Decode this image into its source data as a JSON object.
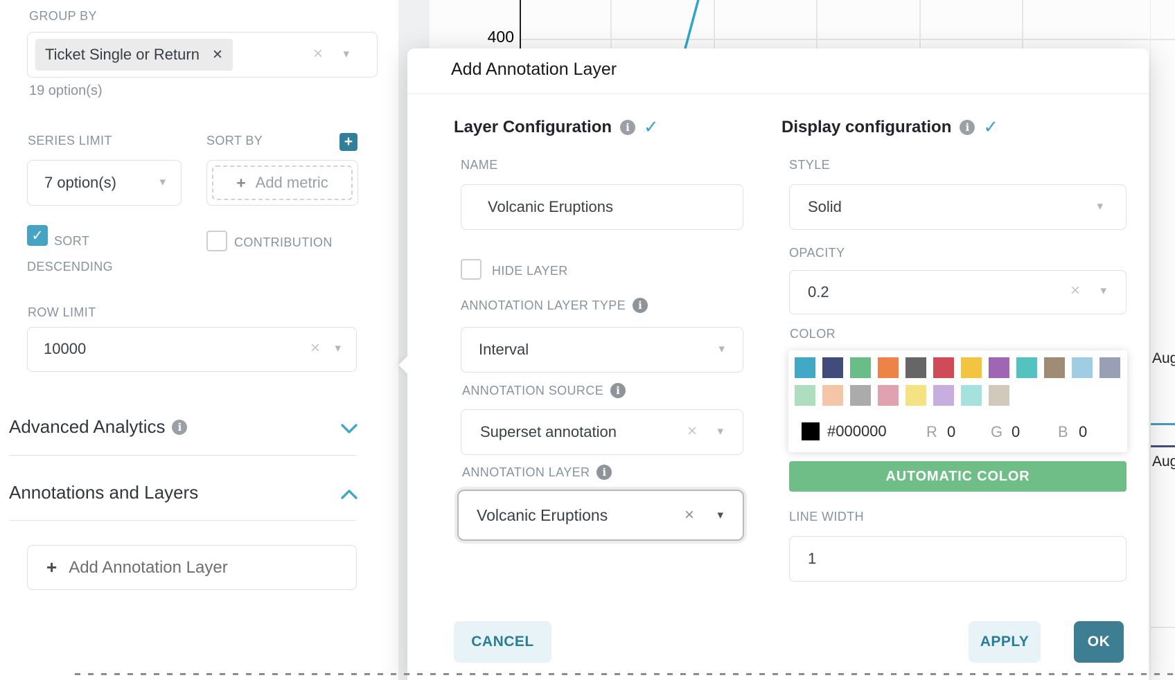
{
  "icons": {
    "caret_down": "▾",
    "clear": "×",
    "tag_remove": "✕",
    "check": "✓",
    "plus": "+",
    "info": "i"
  },
  "colors": {
    "accent_teal": "#41a7c5",
    "primary_button": "#3d7e92",
    "success_green": "#6fbe87",
    "chart_line_blue": "#2ea6c9",
    "chart_line_navy": "#454e7c",
    "chart_line_teal": "#3f9cbf",
    "selected_hex": "#000000"
  },
  "left_panel": {
    "group_by_label": "GROUP BY",
    "group_by_tag": "Ticket Single or Return",
    "group_by_hint": "19 option(s)",
    "series_limit_label": "SERIES LIMIT",
    "series_limit_value": "7 option(s)",
    "sort_by_label": "SORT BY",
    "sort_by_placeholder": "Add metric",
    "sort_descending_label": "SORT DESCENDING",
    "sort_descending_checked": true,
    "contribution_label": "CONTRIBUTION",
    "contribution_checked": false,
    "row_limit_label": "ROW LIMIT",
    "row_limit_value": "10000",
    "advanced_analytics_label": "Advanced Analytics",
    "annotations_layers_label": "Annotations and Layers",
    "add_annotation_layer_button": "Add Annotation Layer"
  },
  "chart": {
    "y_tick": "400",
    "x_label_1": "Aug",
    "x_label_2": "Aug"
  },
  "modal": {
    "title": "Add Annotation Layer",
    "layer_configuration": {
      "section_title": "Layer Configuration",
      "name_label": "NAME",
      "name_value": "Volcanic Eruptions",
      "hide_layer_label": "HIDE LAYER",
      "hide_layer_checked": false,
      "annotation_layer_type_label": "ANNOTATION LAYER TYPE",
      "annotation_layer_type_value": "Interval",
      "annotation_source_label": "ANNOTATION SOURCE",
      "annotation_source_value": "Superset annotation",
      "annotation_layer_label": "ANNOTATION LAYER",
      "annotation_layer_value": "Volcanic Eruptions"
    },
    "display_configuration": {
      "section_title": "Display configuration",
      "style_label": "STYLE",
      "style_value": "Solid",
      "opacity_label": "OPACITY",
      "opacity_value": "0.2",
      "color_label": "COLOR",
      "color_hex": "#000000",
      "r_label": "R",
      "r_value": "0",
      "g_label": "G",
      "g_value": "0",
      "b_label": "B",
      "b_value": "0",
      "swatches_row1": [
        "#41a8c5",
        "#414c7d",
        "#6abd87",
        "#ee8348",
        "#666666",
        "#cf4b58",
        "#f2c43f",
        "#a066b3",
        "#55c2c2",
        "#a08b75",
        "#9fcee4",
        "#99a0b5"
      ],
      "swatches_row2": [
        "#aeddc0",
        "#f5c5a7",
        "#ababab",
        "#e0a2ae",
        "#f5e383",
        "#c7aede",
        "#a6e2dd",
        "#d2c9bd"
      ],
      "automatic_color_button": "AUTOMATIC COLOR",
      "line_width_label": "LINE WIDTH",
      "line_width_value": "1"
    },
    "footer": {
      "cancel": "CANCEL",
      "apply": "APPLY",
      "ok": "OK"
    }
  }
}
